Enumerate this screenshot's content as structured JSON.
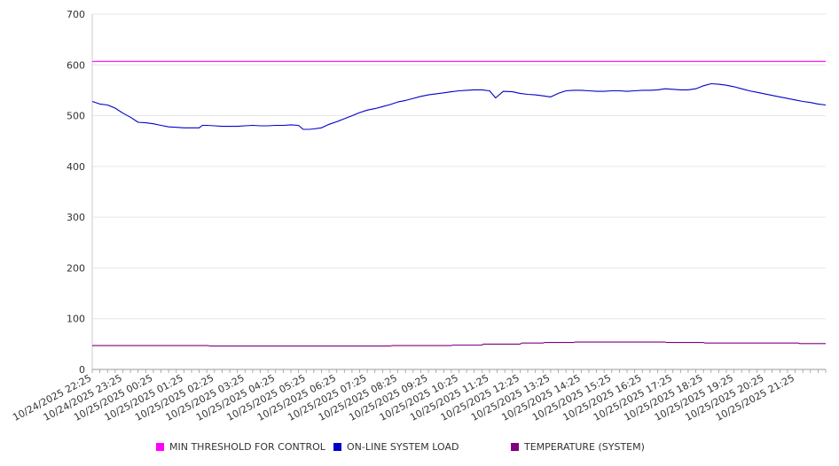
{
  "chart_data": {
    "type": "line",
    "title": "",
    "xlabel": "",
    "ylabel": "",
    "ylim": [
      0,
      700
    ],
    "yticks": [
      "0",
      "100",
      "200",
      "300",
      "400",
      "500",
      "600",
      "700"
    ],
    "x_tick_labels": [
      "10/24/2025 22:25",
      "10/24/2025 23:25",
      "10/25/2025 00:25",
      "10/25/2025 01:25",
      "10/25/2025 02:25",
      "10/25/2025 03:25",
      "10/25/2025 04:25",
      "10/25/2025 05:25",
      "10/25/2025 06:25",
      "10/25/2025 07:25",
      "10/25/2025 08:25",
      "10/25/2025 09:25",
      "10/25/2025 10:25",
      "10/25/2025 11:25",
      "10/25/2025 12:25",
      "10/25/2025 13:25",
      "10/25/2025 14:25",
      "10/25/2025 15:25",
      "10/25/2025 16:25",
      "10/25/2025 17:25",
      "10/25/2025 18:25",
      "10/25/2025 19:25",
      "10/25/2025 20:25",
      "10/25/2025 21:25"
    ],
    "x_range_hours": [
      0,
      24
    ],
    "grid": true,
    "legend_position": "bottom",
    "series": [
      {
        "name": "MIN THRESHOLD FOR CONTROL",
        "color": "#ff00ff",
        "points": [
          [
            0,
            607
          ],
          [
            24,
            607
          ]
        ]
      },
      {
        "name": "ON-LINE SYSTEM LOAD",
        "color": "#0000cc",
        "points": [
          [
            0,
            528
          ],
          [
            0.25,
            523
          ],
          [
            0.5,
            521
          ],
          [
            0.75,
            515
          ],
          [
            1.0,
            505
          ],
          [
            1.25,
            497
          ],
          [
            1.5,
            487
          ],
          [
            1.75,
            486
          ],
          [
            2.0,
            484
          ],
          [
            2.25,
            481
          ],
          [
            2.5,
            478
          ],
          [
            2.75,
            477
          ],
          [
            3.0,
            476
          ],
          [
            3.25,
            476
          ],
          [
            3.5,
            476
          ],
          [
            3.6,
            481
          ],
          [
            3.75,
            481
          ],
          [
            4.0,
            480
          ],
          [
            4.25,
            479
          ],
          [
            4.5,
            479
          ],
          [
            4.75,
            479
          ],
          [
            5.0,
            480
          ],
          [
            5.25,
            481
          ],
          [
            5.5,
            480
          ],
          [
            5.75,
            480
          ],
          [
            6.0,
            481
          ],
          [
            6.25,
            481
          ],
          [
            6.5,
            482
          ],
          [
            6.75,
            481
          ],
          [
            6.9,
            473
          ],
          [
            7.1,
            473
          ],
          [
            7.25,
            474
          ],
          [
            7.5,
            476
          ],
          [
            7.75,
            483
          ],
          [
            8.0,
            488
          ],
          [
            8.25,
            494
          ],
          [
            8.5,
            500
          ],
          [
            8.75,
            506
          ],
          [
            9.0,
            511
          ],
          [
            9.25,
            514
          ],
          [
            9.5,
            518
          ],
          [
            9.75,
            522
          ],
          [
            10.0,
            527
          ],
          [
            10.25,
            530
          ],
          [
            10.5,
            534
          ],
          [
            10.75,
            538
          ],
          [
            11.0,
            541
          ],
          [
            11.25,
            543
          ],
          [
            11.5,
            545
          ],
          [
            11.75,
            547
          ],
          [
            12.0,
            549
          ],
          [
            12.25,
            550
          ],
          [
            12.5,
            551
          ],
          [
            12.75,
            551
          ],
          [
            13.0,
            549
          ],
          [
            13.2,
            535
          ],
          [
            13.45,
            548
          ],
          [
            13.75,
            547
          ],
          [
            14.0,
            544
          ],
          [
            14.25,
            542
          ],
          [
            14.5,
            541
          ],
          [
            14.75,
            539
          ],
          [
            15.0,
            537
          ],
          [
            15.25,
            544
          ],
          [
            15.5,
            549
          ],
          [
            15.75,
            550
          ],
          [
            16.0,
            550
          ],
          [
            16.25,
            549
          ],
          [
            16.5,
            548
          ],
          [
            16.75,
            548
          ],
          [
            17.0,
            549
          ],
          [
            17.25,
            549
          ],
          [
            17.5,
            548
          ],
          [
            17.75,
            549
          ],
          [
            18.0,
            550
          ],
          [
            18.25,
            550
          ],
          [
            18.5,
            551
          ],
          [
            18.75,
            553
          ],
          [
            19.0,
            552
          ],
          [
            19.25,
            551
          ],
          [
            19.5,
            551
          ],
          [
            19.75,
            553
          ],
          [
            20.0,
            559
          ],
          [
            20.25,
            563
          ],
          [
            20.5,
            562
          ],
          [
            20.75,
            560
          ],
          [
            21.0,
            557
          ],
          [
            21.25,
            553
          ],
          [
            21.5,
            549
          ],
          [
            21.75,
            546
          ],
          [
            22.0,
            543
          ],
          [
            22.25,
            540
          ],
          [
            22.5,
            537
          ],
          [
            22.75,
            534
          ],
          [
            23.0,
            531
          ],
          [
            23.25,
            528
          ],
          [
            23.5,
            526
          ],
          [
            23.75,
            523
          ],
          [
            24.0,
            521
          ]
        ]
      },
      {
        "name": "TEMPERATURE (SYSTEM)",
        "color": "#800080",
        "points": [
          [
            0,
            47
          ],
          [
            3.8,
            47
          ],
          [
            3.85,
            46
          ],
          [
            9.75,
            46
          ],
          [
            9.8,
            47
          ],
          [
            11.75,
            47
          ],
          [
            11.8,
            48
          ],
          [
            12.75,
            48
          ],
          [
            12.8,
            50
          ],
          [
            14.0,
            50
          ],
          [
            14.05,
            52
          ],
          [
            14.75,
            52
          ],
          [
            14.8,
            53
          ],
          [
            15.75,
            53
          ],
          [
            15.8,
            54
          ],
          [
            18.75,
            54
          ],
          [
            18.8,
            53
          ],
          [
            20.0,
            53
          ],
          [
            20.05,
            52
          ],
          [
            23.1,
            52
          ],
          [
            23.15,
            51
          ],
          [
            24,
            51
          ]
        ]
      }
    ]
  },
  "legend": {
    "items": [
      {
        "label": "MIN THRESHOLD FOR CONTROL",
        "color": "#ff00ff"
      },
      {
        "label": "ON-LINE SYSTEM LOAD",
        "color": "#0000cc"
      },
      {
        "label": "TEMPERATURE (SYSTEM)",
        "color": "#800080"
      }
    ]
  }
}
